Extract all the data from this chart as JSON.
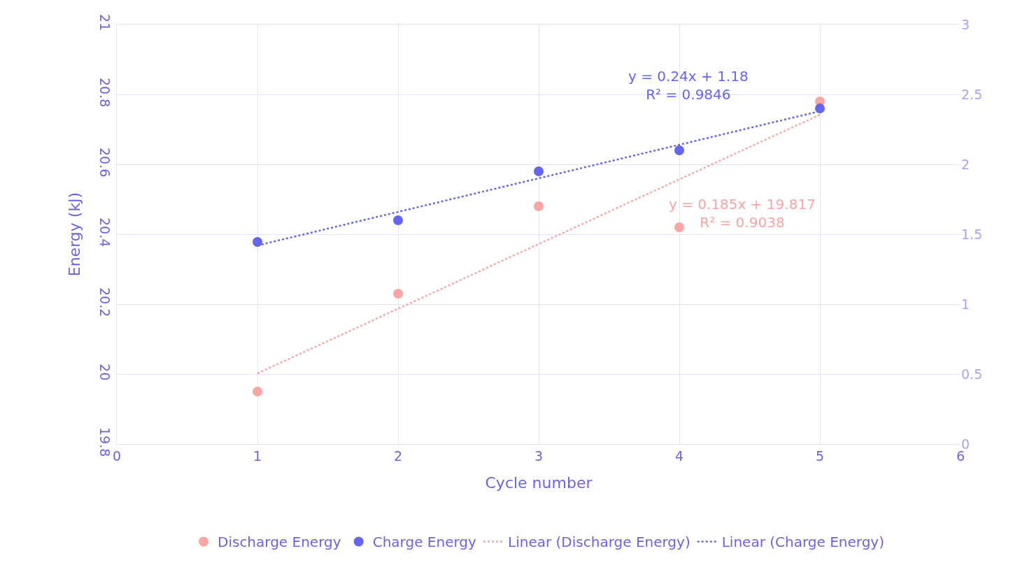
{
  "chart_data": {
    "type": "scatter",
    "xlabel": "Cycle number",
    "ylabel": "Energy (kJ)",
    "xlim": [
      0,
      6
    ],
    "xticks": [
      0,
      1,
      2,
      3,
      4,
      5,
      6
    ],
    "ylim": [
      19.8,
      21
    ],
    "yticks": [
      19.8,
      20,
      20.2,
      20.4,
      20.6,
      20.8,
      21
    ],
    "y2lim": [
      0,
      3
    ],
    "y2ticks": [
      0,
      0.5,
      1,
      1.5,
      2,
      2.5,
      3
    ],
    "grid": true,
    "legend": "bottom",
    "marker": "circle",
    "series": [
      {
        "name": "Discharge Energy",
        "color": "#fda4a4",
        "x": [
          1,
          2,
          3,
          4,
          5
        ],
        "values": [
          19.95,
          20.23,
          20.48,
          20.42,
          20.78
        ]
      },
      {
        "name": "Charge Energy",
        "color": "#6366f1",
        "axis": "y2",
        "x": [
          1,
          2,
          3,
          4,
          5
        ],
        "values": [
          1.445,
          1.6,
          1.95,
          2.1,
          2.4
        ]
      },
      {
        "name": "Linear (Discharge Energy)",
        "type": "line",
        "line_style": "dotted",
        "marker": "none",
        "color": "#fda4a4",
        "x": [
          1,
          5
        ],
        "values": [
          20.002,
          20.742
        ]
      },
      {
        "name": "Linear (Charge Energy)",
        "type": "line",
        "line_style": "dotted",
        "marker": "none",
        "color": "#6366f1",
        "axis": "y2",
        "x": [
          1,
          5
        ],
        "values": [
          1.42,
          2.38
        ]
      }
    ],
    "annotations": [
      "y = 0.24x + 1.18\nR² = 0.9846",
      "y = 0.185x + 19.817\nR² = 0.9038"
    ]
  }
}
